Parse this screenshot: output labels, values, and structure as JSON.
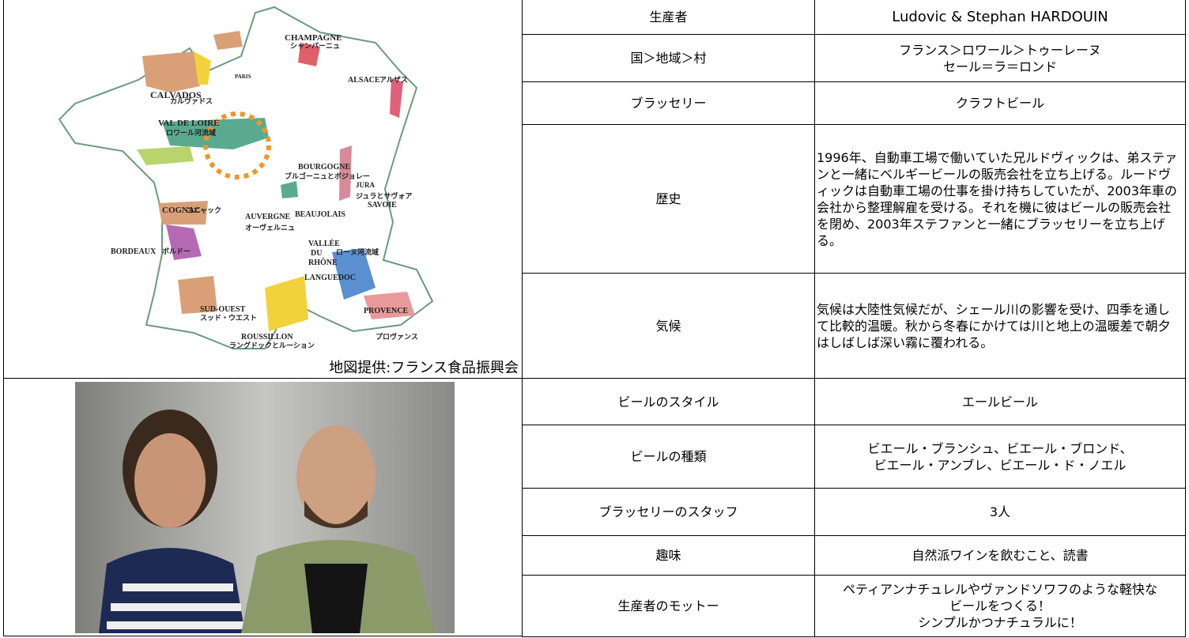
{
  "map": {
    "labels": [
      "CHAMPAGNE",
      "シャンパーニュ",
      "CALVADOS",
      "カルヴァドス",
      "PARIS",
      "ALSACE",
      "アルザス",
      "VAL DE LOIRE",
      "ロワール河流域",
      "BOURGOGNE",
      "ブルゴーニュとボジョレー",
      "JURA",
      "ジュラとサヴォア",
      "SAVOIE",
      "BEAUJOLAIS",
      "COGNAC",
      "コニャック",
      "AUVERGNE",
      "オーヴェルニュ",
      "VALLÉE",
      "DU",
      "RHÔNE",
      "ローヌ河流域",
      "BORDEAUX",
      "ボルドー",
      "LANGUEDOC",
      "PROVENCE",
      "プロヴァンス",
      "SUD-OUEST",
      "スッド・ウエスト",
      "ROUSSILLON",
      "ラングドックとルーション"
    ],
    "caption": "地図提供:フランス食品振興会"
  },
  "table": {
    "rows": [
      [
        "生産者",
        "Ludovic & Stephan HARDOUIN"
      ],
      [
        "国＞地域＞村",
        "フランス＞ロワール＞トゥーレーヌ\nセール＝ラ＝ロンド"
      ],
      [
        "ブラッセリー",
        "クラフトビール"
      ],
      [
        "歴史",
        "1996年、自動車工場で働いていた兄ルドヴィックは、弟ステァンと一緒にベルギービールの販売会社を立ち上げる。ルードヴィックは自動車工場の仕事を掛け持ちしていたが、2003年車の会社から整理解雇を受ける。それを機に彼はビールの販売会社を閉め、2003年ステファンと一緒にブラッセリーを立ち上げる。"
      ],
      [
        "気候",
        "気候は大陸性気候だが、シェール川の影響を受け、四季を通して比較的温暖。秋から冬春にかけては川と地上の温暖差で朝夕はしばしば深い霧に覆われる。"
      ],
      [
        "ビールのスタイル",
        "エールビール"
      ],
      [
        "ビールの種類",
        "ビエール・ブランシュ、ビエール・ブロンド、\nビエール・アンブレ、ビエール・ド・ノエル"
      ],
      [
        "ブラッセリーのスタッフ",
        "3人"
      ],
      [
        "趣味",
        "自然派ワインを飲むこと、読書"
      ],
      [
        "生産者のモットー",
        "ペティアンナチュレルやヴァンドソワフのような軽快な\nビールをつくる！\nシンプルかつナチュラルに！"
      ]
    ]
  }
}
